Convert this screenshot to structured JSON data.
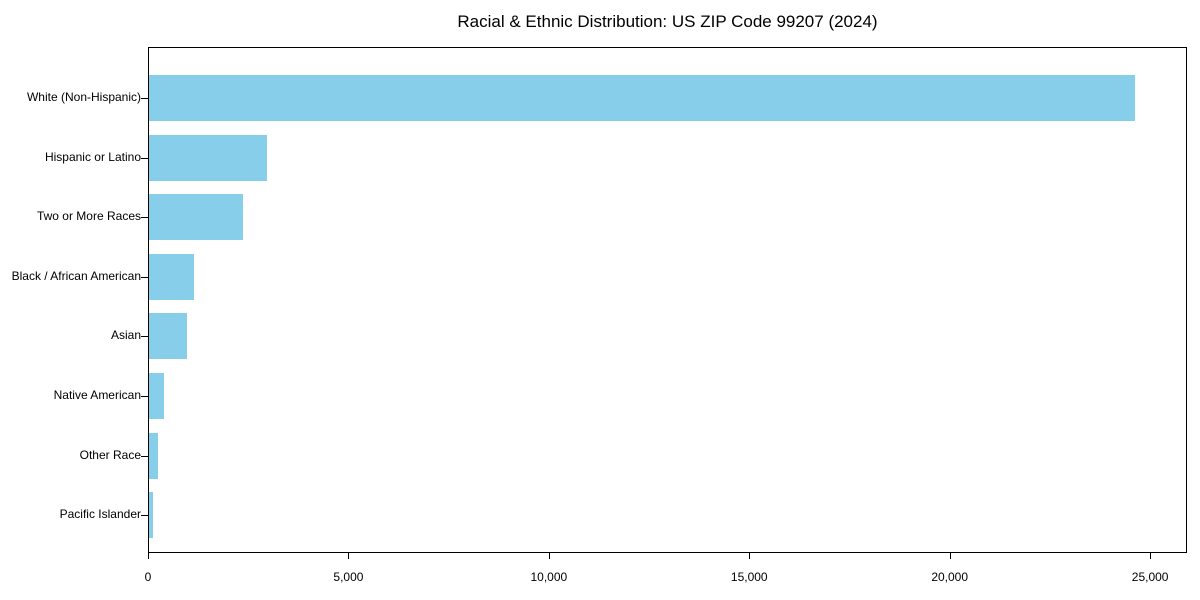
{
  "chart_data": {
    "type": "bar",
    "orientation": "horizontal",
    "title": "Racial & Ethnic Distribution: US ZIP Code 99207 (2024)",
    "categories": [
      "White (Non-Hispanic)",
      "Hispanic or Latino",
      "Two or More Races",
      "Black / African American",
      "Asian",
      "Native American",
      "Other Race",
      "Pacific Islander"
    ],
    "values": [
      24600,
      2950,
      2350,
      1120,
      960,
      380,
      230,
      110
    ],
    "xlabel": "",
    "ylabel": "",
    "xlim": [
      0,
      25870
    ],
    "x_ticks": [
      0,
      5000,
      10000,
      15000,
      20000,
      25000
    ],
    "x_tick_labels": [
      "0",
      "5,000",
      "10,000",
      "15,000",
      "20,000",
      "25,000"
    ],
    "bar_color": "#87CEEB",
    "grid": false,
    "legend": null
  }
}
